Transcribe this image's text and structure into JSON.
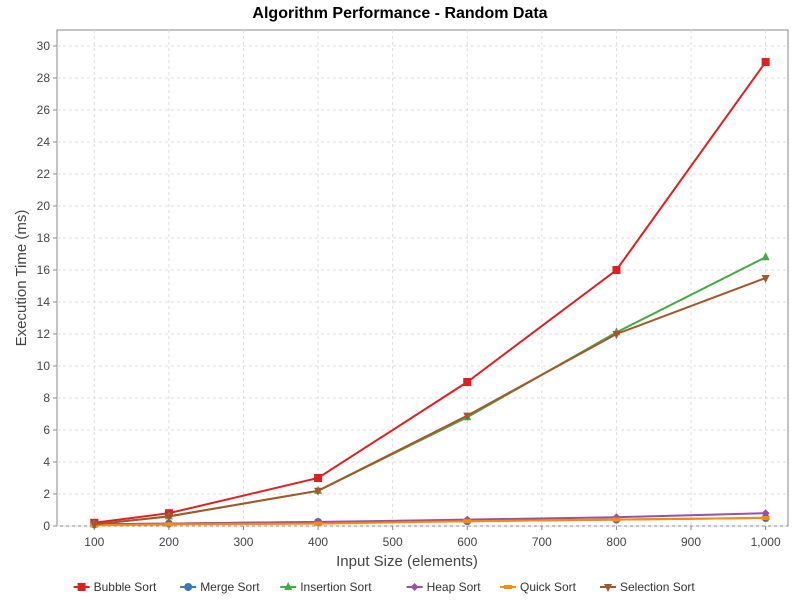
{
  "chart_data": {
    "type": "line",
    "title": "Algorithm Performance - Random Data",
    "xlabel": "Input Size (elements)",
    "ylabel": "Execution Time (ms)",
    "xlim": [
      50,
      1030
    ],
    "ylim": [
      0,
      31
    ],
    "x_ticks": [
      100,
      200,
      300,
      400,
      500,
      600,
      700,
      800,
      900,
      1000
    ],
    "x_tick_labels": [
      "100",
      "200",
      "300",
      "400",
      "500",
      "600",
      "700",
      "800",
      "900",
      "1,000"
    ],
    "y_ticks": [
      0,
      2,
      4,
      6,
      8,
      10,
      12,
      14,
      16,
      18,
      20,
      22,
      24,
      26,
      28,
      30
    ],
    "grid": true,
    "legend_position": "bottom",
    "x": [
      100,
      200,
      400,
      600,
      800,
      1000
    ],
    "series": [
      {
        "name": "Bubble Sort",
        "color": "#e02020",
        "marker": "square",
        "values": [
          0.2,
          0.8,
          3.0,
          9.0,
          16.0,
          29.0
        ]
      },
      {
        "name": "Merge Sort",
        "color": "#3a78b8",
        "marker": "circle",
        "values": [
          0.1,
          0.15,
          0.25,
          0.3,
          0.4,
          0.5
        ]
      },
      {
        "name": "Insertion Sort",
        "color": "#44aa44",
        "marker": "triangle-up",
        "values": [
          0.1,
          0.6,
          2.2,
          6.8,
          12.1,
          16.8
        ]
      },
      {
        "name": "Heap Sort",
        "color": "#9950a8",
        "marker": "diamond",
        "values": [
          0.1,
          0.15,
          0.25,
          0.4,
          0.55,
          0.8
        ]
      },
      {
        "name": "Quick Sort",
        "color": "#ff8a00",
        "marker": "hbar",
        "values": [
          0.05,
          0.1,
          0.15,
          0.3,
          0.4,
          0.5
        ]
      },
      {
        "name": "Selection Sort",
        "color": "#a65628",
        "marker": "triangle-down",
        "values": [
          0.1,
          0.6,
          2.2,
          6.9,
          12.0,
          15.5
        ]
      }
    ]
  }
}
